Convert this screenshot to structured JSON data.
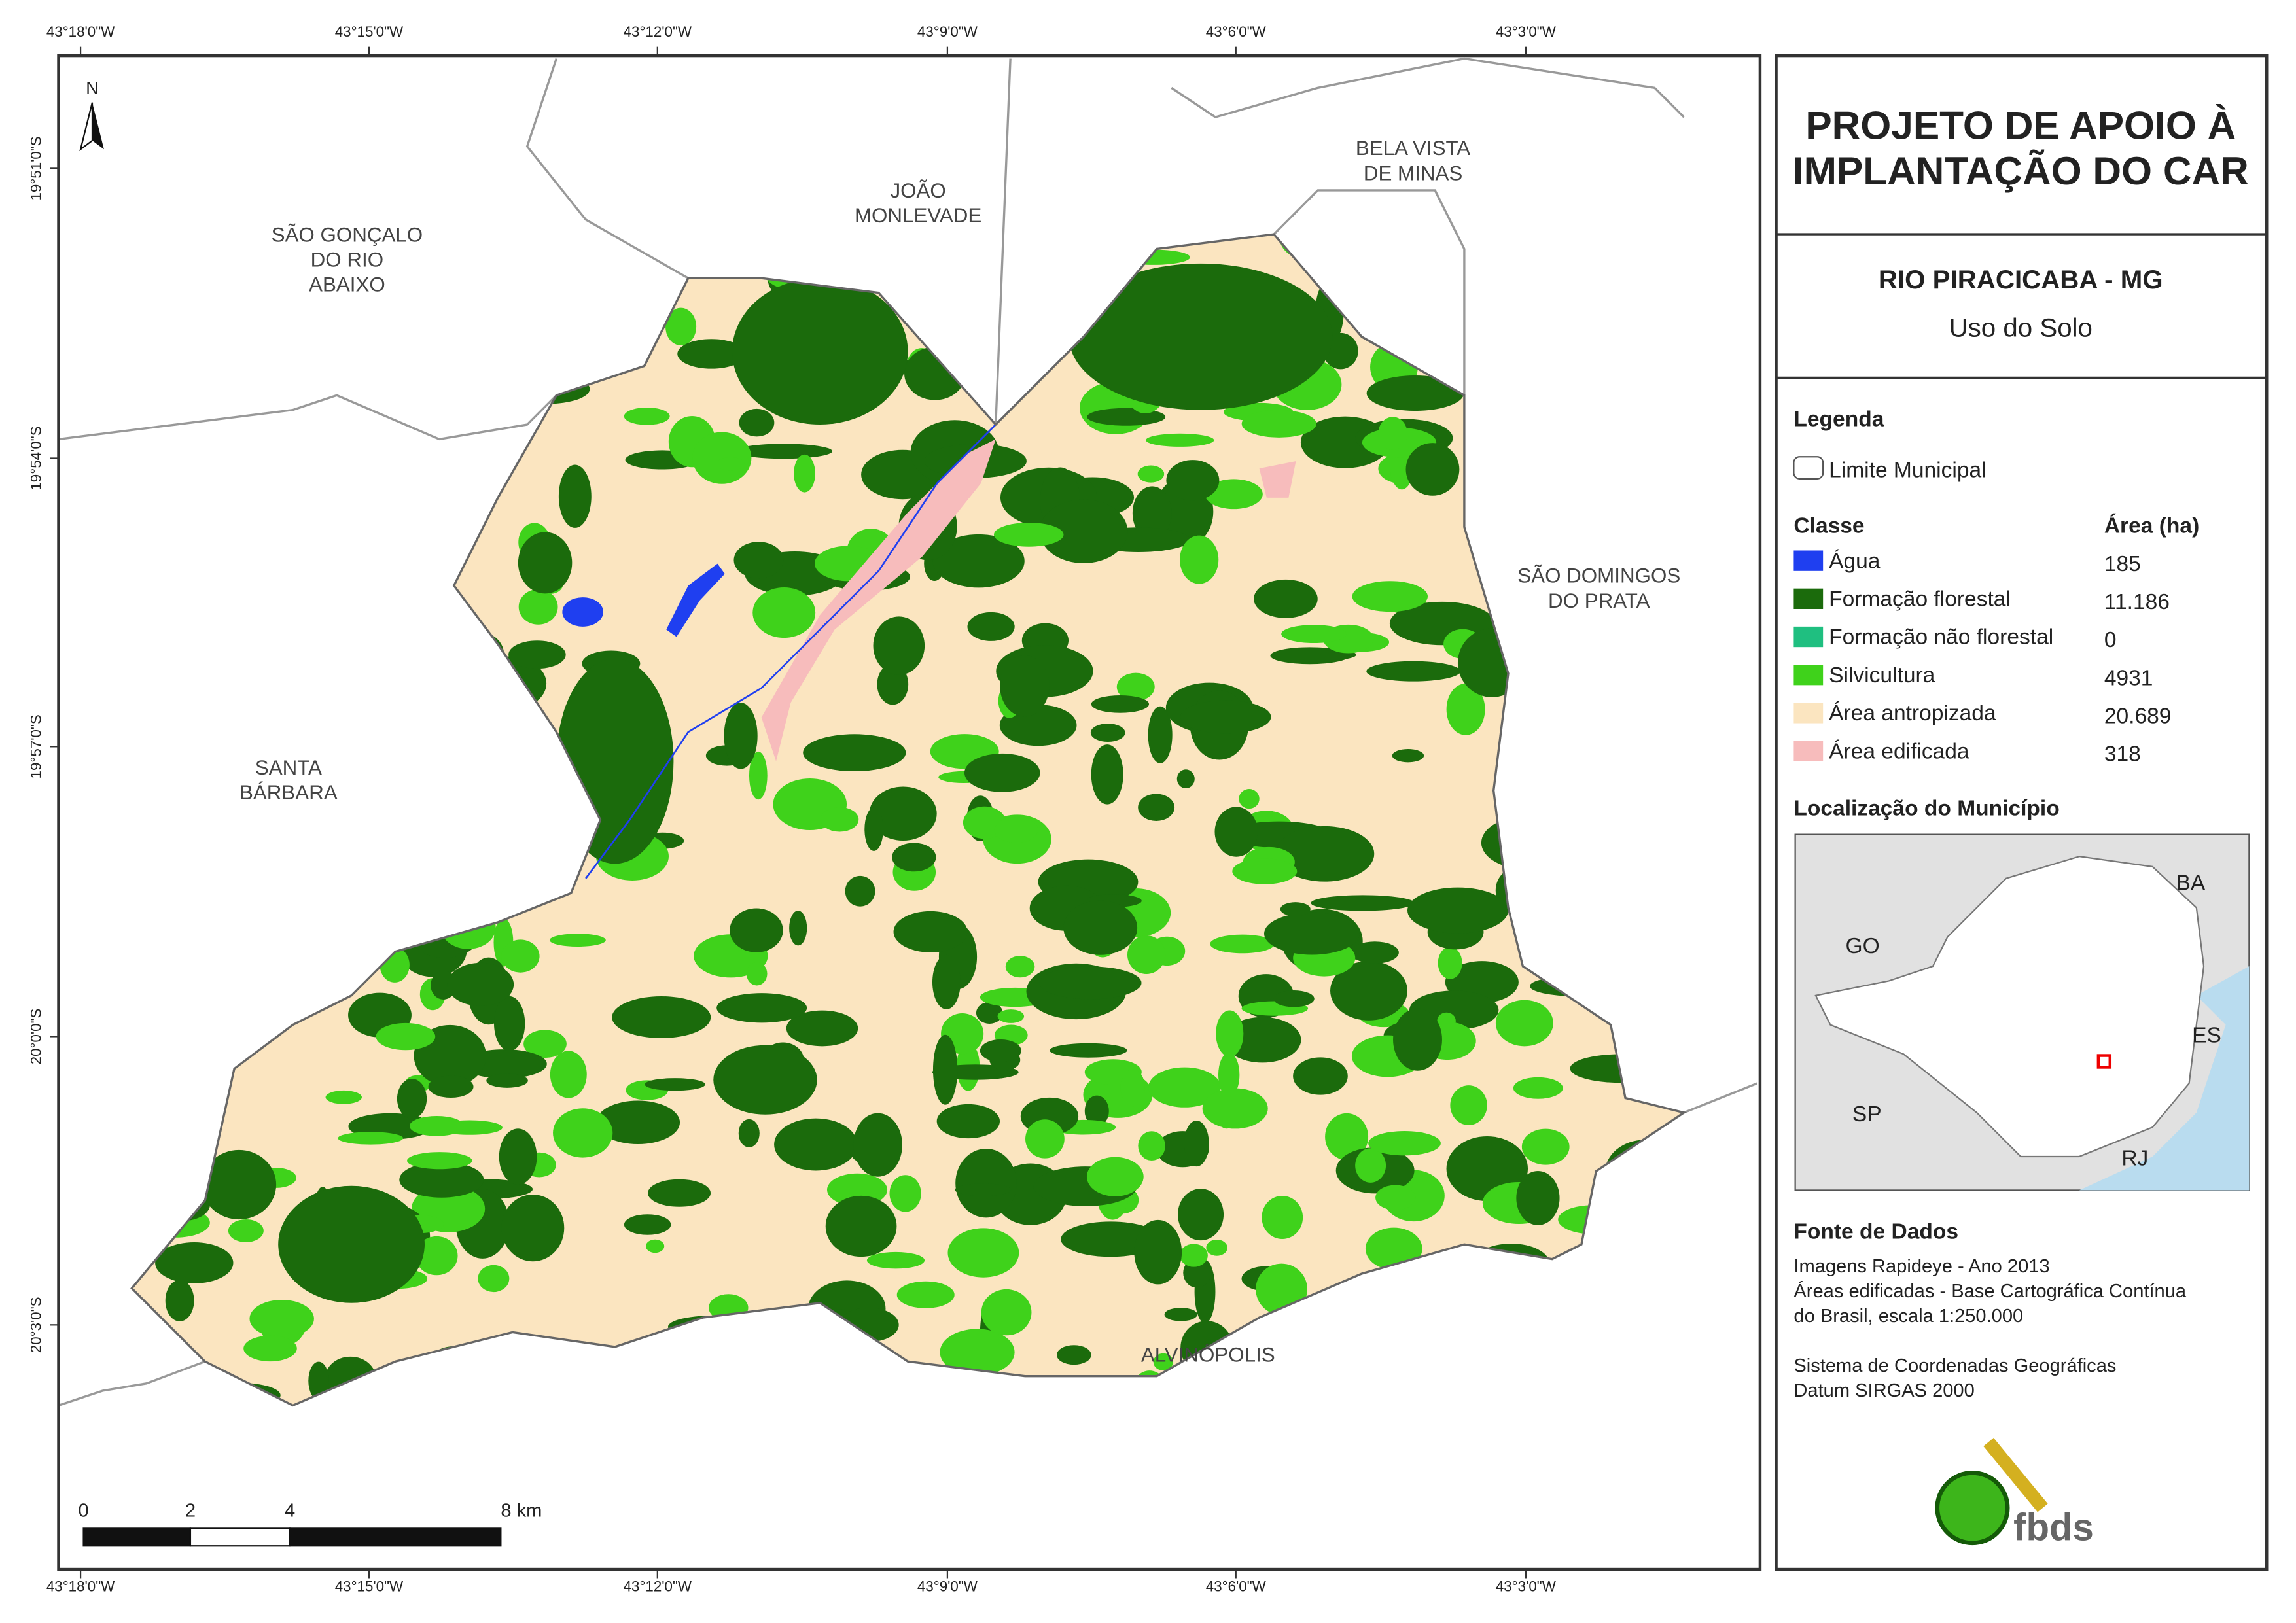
{
  "header": {
    "title_lines": [
      "PROJETO DE APOIO À",
      "IMPLANTAÇÃO DO CAR"
    ],
    "subtitle": "RIO PIRACICABA - MG",
    "theme": "Uso do Solo"
  },
  "map": {
    "north": "N",
    "longitude_labels": [
      "43°18'0\"W",
      "43°15'0\"W",
      "43°12'0\"W",
      "43°9'0\"W",
      "43°6'0\"W",
      "43°3'0\"W"
    ],
    "latitude_labels": [
      "19°51'0\"S",
      "19°54'0\"S",
      "19°57'0\"S",
      "20°0'0\"S",
      "20°3'0\"S"
    ],
    "places": [
      {
        "lines": [
          "SÃO GONÇALO",
          "DO RIO",
          "ABAIXO"
        ]
      },
      {
        "lines": [
          "JOÃO",
          "MONLEVADE"
        ]
      },
      {
        "lines": [
          "BELA VISTA",
          "DE MINAS"
        ]
      },
      {
        "lines": [
          "SÃO DOMINGOS",
          "DO PRATA"
        ]
      },
      {
        "lines": [
          "SANTA",
          "BÁRBARA"
        ]
      },
      {
        "lines": [
          "ALVINÓPOLIS"
        ]
      }
    ],
    "scale_labels": [
      "0",
      "2",
      "4",
      "8 km"
    ]
  },
  "legend": {
    "title": "Legenda",
    "boundary": "Limite Municipal",
    "class_header": "Classe",
    "area_header": "Área (ha)",
    "classes": [
      {
        "name": "Água",
        "color": "#1f3ff0",
        "area": "185"
      },
      {
        "name": "Formação florestal",
        "color": "#1b6b0c",
        "area": "11.186"
      },
      {
        "name": "Formação não florestal",
        "color": "#1fbf80",
        "area": "0"
      },
      {
        "name": "Silvicultura",
        "color": "#3fd21b",
        "area": "4931"
      },
      {
        "name": "Área antropizada",
        "color": "#fbe5c0",
        "area": "20.689"
      },
      {
        "name": "Área edificada",
        "color": "#f7bcbc",
        "area": "318"
      }
    ]
  },
  "locator": {
    "title": "Localização do Município",
    "labels": [
      "BA",
      "GO",
      "ES",
      "SP",
      "RJ"
    ]
  },
  "sources": {
    "title": "Fonte de Dados",
    "lines": [
      "Imagens Rapideye - Ano 2013",
      "Áreas edificadas - Base Cartográfica Contínua",
      "do Brasil, escala 1:250.000",
      "",
      "Sistema de Coordenadas Geográficas",
      "Datum SIRGAS 2000"
    ],
    "logo": "fbds"
  }
}
